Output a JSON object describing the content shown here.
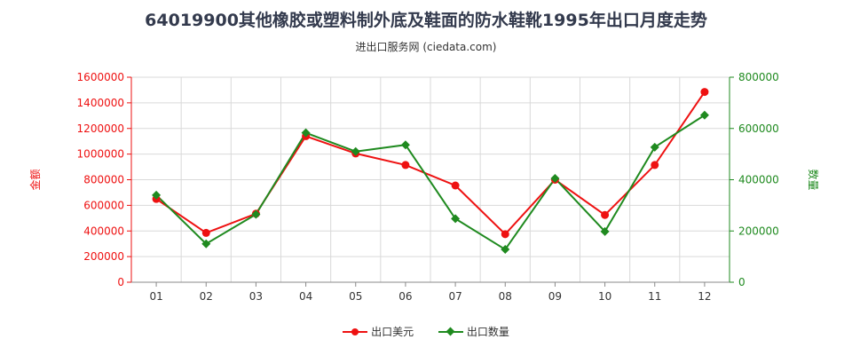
{
  "title": "64019900其他橡胶或塑料制外底及鞋面的防水鞋靴1995年出口月度走势",
  "subtitle": "进出口服务网 (ciedata.com)",
  "colors": {
    "value": "#ee1111",
    "qty": "#1f8a1f"
  },
  "chart_data": {
    "type": "line",
    "categories": [
      "01",
      "02",
      "03",
      "04",
      "05",
      "06",
      "07",
      "08",
      "09",
      "10",
      "11",
      "12"
    ],
    "series": [
      {
        "name": "出口美元",
        "axis": "left",
        "values": [
          650000,
          385000,
          535000,
          1140000,
          1005000,
          915000,
          755000,
          375000,
          800000,
          525000,
          915000,
          1485000
        ]
      },
      {
        "name": "出口数量",
        "axis": "right",
        "values": [
          340000,
          150000,
          265000,
          583000,
          510000,
          536000,
          248000,
          128000,
          405000,
          198000,
          527000,
          652000
        ]
      }
    ],
    "left_axis": {
      "label": "金额",
      "min": 0,
      "max": 1600000,
      "ticks": [
        "0",
        "200000",
        "400000",
        "600000",
        "800000",
        "1000000",
        "1200000",
        "1400000",
        "1600000"
      ]
    },
    "right_axis": {
      "label": "数量",
      "min": 0,
      "max": 800000,
      "ticks": [
        "0",
        "200000",
        "400000",
        "600000",
        "800000"
      ]
    },
    "grid": true,
    "legend_position": "bottom"
  }
}
